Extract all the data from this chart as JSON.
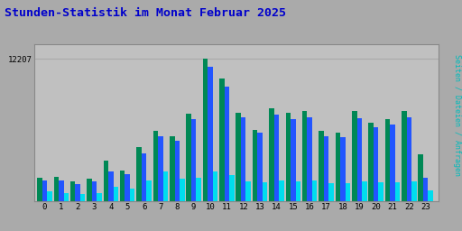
{
  "title": "Stunden-Statistik im Monat Februar 2025",
  "title_color": "#0000cc",
  "background_color": "#aaaaaa",
  "plot_bg_color": "#c0c0c0",
  "grid_color": "#aaaaaa",
  "ytick_label": "12207",
  "ytick_val": 12207,
  "hours": [
    0,
    1,
    2,
    3,
    4,
    5,
    6,
    7,
    8,
    9,
    10,
    11,
    12,
    13,
    14,
    15,
    16,
    17,
    18,
    19,
    20,
    21,
    22,
    23
  ],
  "seiten": [
    2000,
    2100,
    1700,
    1900,
    3500,
    2600,
    4600,
    6000,
    5600,
    7500,
    12207,
    10500,
    7600,
    6100,
    8000,
    7600,
    7700,
    6000,
    5900,
    7700,
    6700,
    7000,
    7700,
    4000
  ],
  "dateien": [
    1750,
    1800,
    1450,
    1650,
    2500,
    2300,
    4100,
    5600,
    5200,
    7000,
    11500,
    9800,
    7200,
    5900,
    7400,
    7000,
    7200,
    5600,
    5500,
    7100,
    6300,
    6600,
    7200,
    2000
  ],
  "anfragen": [
    800,
    700,
    600,
    700,
    1200,
    1100,
    1800,
    2500,
    1900,
    2000,
    2500,
    2200,
    1700,
    1600,
    1800,
    1700,
    1800,
    1500,
    1500,
    1700,
    1600,
    1600,
    1700,
    900
  ],
  "bar_colors": [
    "#008855",
    "#2255ff",
    "#00ddee"
  ],
  "ylim": [
    0,
    13500
  ],
  "bar_width": 0.3,
  "right_label_parts": [
    "Seiten",
    " / ",
    "Dateien",
    " / ",
    "Anfragen"
  ],
  "right_label_colors": [
    "#008855",
    "#333333",
    "#2255ff",
    "#333333",
    "#00ddee"
  ]
}
